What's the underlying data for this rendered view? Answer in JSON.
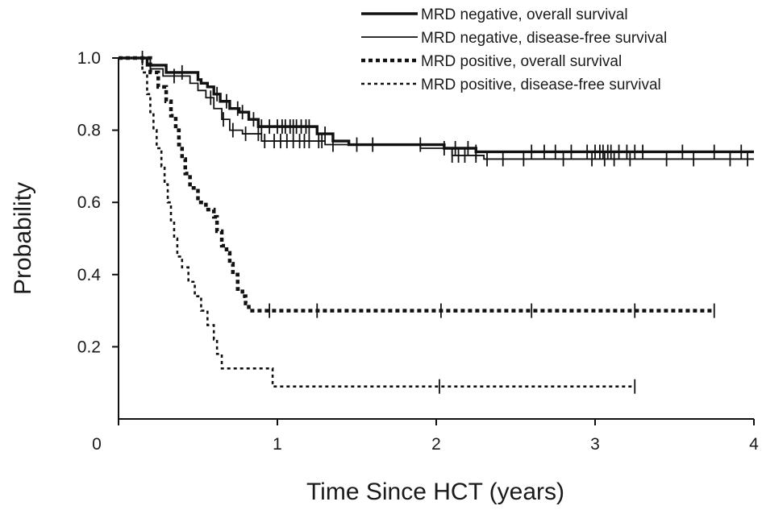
{
  "chart_data": {
    "type": "line",
    "subtype": "kaplan-meier step",
    "xlabel": "Time Since HCT (years)",
    "ylabel": "Probability",
    "xlim": [
      0,
      4
    ],
    "ylim": [
      0,
      1.0
    ],
    "x_ticks": [
      0,
      1,
      2,
      3,
      4
    ],
    "x_tick_labels": [
      "0",
      "1",
      "2",
      "3",
      "4"
    ],
    "y_ticks": [
      0.2,
      0.4,
      0.6,
      0.8,
      1.0
    ],
    "y_tick_labels": [
      "0.2",
      "0.4",
      "0.6",
      "0.8",
      "1.0"
    ],
    "grid": false,
    "legend_position": "top-right",
    "series": [
      {
        "name": "MRD negative, overall survival",
        "style": "solid-thick",
        "color": "#111111",
        "steps": [
          [
            0,
            1.0
          ],
          [
            0.18,
            0.98
          ],
          [
            0.3,
            0.96
          ],
          [
            0.5,
            0.94
          ],
          [
            0.52,
            0.93
          ],
          [
            0.56,
            0.92
          ],
          [
            0.6,
            0.9
          ],
          [
            0.64,
            0.88
          ],
          [
            0.7,
            0.86
          ],
          [
            0.76,
            0.85
          ],
          [
            0.82,
            0.83
          ],
          [
            0.88,
            0.81
          ],
          [
            1.25,
            0.79
          ],
          [
            1.35,
            0.77
          ],
          [
            1.45,
            0.76
          ],
          [
            2.05,
            0.75
          ],
          [
            2.25,
            0.74
          ],
          [
            2.3,
            0.74
          ],
          [
            4.0,
            0.74
          ]
        ],
        "censor_times": [
          0.2,
          0.4,
          0.62,
          0.68,
          0.75,
          0.78,
          0.85,
          0.9,
          0.95,
          1.0,
          1.03,
          1.05,
          1.08,
          1.1,
          1.12,
          1.15,
          1.18,
          1.2,
          1.3,
          1.5,
          1.9,
          2.05,
          2.12,
          2.2,
          2.25,
          2.6,
          2.68,
          2.75,
          2.85,
          2.95,
          3.0,
          3.03,
          3.05,
          3.08,
          3.1,
          3.15,
          3.2,
          3.25,
          3.3,
          3.55,
          3.75,
          3.92
        ]
      },
      {
        "name": "MRD negative, disease-free survival",
        "style": "solid-thin",
        "color": "#111111",
        "steps": [
          [
            0,
            1.0
          ],
          [
            0.2,
            0.97
          ],
          [
            0.28,
            0.95
          ],
          [
            0.45,
            0.93
          ],
          [
            0.5,
            0.91
          ],
          [
            0.55,
            0.89
          ],
          [
            0.6,
            0.86
          ],
          [
            0.65,
            0.83
          ],
          [
            0.7,
            0.8
          ],
          [
            0.78,
            0.79
          ],
          [
            0.9,
            0.77
          ],
          [
            1.3,
            0.76
          ],
          [
            1.9,
            0.75
          ],
          [
            2.1,
            0.73
          ],
          [
            2.3,
            0.72
          ],
          [
            4.0,
            0.72
          ]
        ],
        "censor_times": [
          0.15,
          0.35,
          0.58,
          0.66,
          0.72,
          0.8,
          0.88,
          0.92,
          0.98,
          1.02,
          1.06,
          1.1,
          1.14,
          1.17,
          1.2,
          1.26,
          1.28,
          1.35,
          1.6,
          2.1,
          2.14,
          2.18,
          2.25,
          2.32,
          2.42,
          2.55,
          2.8,
          2.98,
          3.06,
          3.12,
          3.22,
          3.45,
          3.62,
          3.85,
          3.96
        ]
      },
      {
        "name": "MRD positive, overall survival",
        "style": "dotted-thick",
        "color": "#111111",
        "steps": [
          [
            0,
            1.0
          ],
          [
            0.2,
            0.96
          ],
          [
            0.25,
            0.92
          ],
          [
            0.3,
            0.88
          ],
          [
            0.33,
            0.84
          ],
          [
            0.36,
            0.8
          ],
          [
            0.38,
            0.76
          ],
          [
            0.4,
            0.72
          ],
          [
            0.42,
            0.68
          ],
          [
            0.45,
            0.64
          ],
          [
            0.5,
            0.6
          ],
          [
            0.55,
            0.58
          ],
          [
            0.6,
            0.56
          ],
          [
            0.62,
            0.52
          ],
          [
            0.65,
            0.48
          ],
          [
            0.68,
            0.46
          ],
          [
            0.7,
            0.43
          ],
          [
            0.72,
            0.4
          ],
          [
            0.75,
            0.36
          ],
          [
            0.78,
            0.34
          ],
          [
            0.8,
            0.32
          ],
          [
            0.82,
            0.3
          ],
          [
            3.75,
            0.3
          ]
        ],
        "censor_times": [
          0.95,
          1.25,
          2.03,
          2.6,
          3.25,
          3.75
        ]
      },
      {
        "name": "MRD positive, disease-free survival",
        "style": "dotted-thin",
        "color": "#111111",
        "steps": [
          [
            0,
            1.0
          ],
          [
            0.15,
            0.96
          ],
          [
            0.18,
            0.9
          ],
          [
            0.2,
            0.85
          ],
          [
            0.22,
            0.8
          ],
          [
            0.24,
            0.75
          ],
          [
            0.27,
            0.7
          ],
          [
            0.29,
            0.65
          ],
          [
            0.31,
            0.6
          ],
          [
            0.33,
            0.55
          ],
          [
            0.35,
            0.5
          ],
          [
            0.37,
            0.45
          ],
          [
            0.4,
            0.42
          ],
          [
            0.44,
            0.38
          ],
          [
            0.48,
            0.34
          ],
          [
            0.52,
            0.3
          ],
          [
            0.56,
            0.26
          ],
          [
            0.6,
            0.22
          ],
          [
            0.62,
            0.18
          ],
          [
            0.65,
            0.14
          ],
          [
            0.97,
            0.09
          ],
          [
            3.25,
            0.09
          ]
        ],
        "censor_times": [
          2.02,
          3.25
        ]
      }
    ]
  }
}
